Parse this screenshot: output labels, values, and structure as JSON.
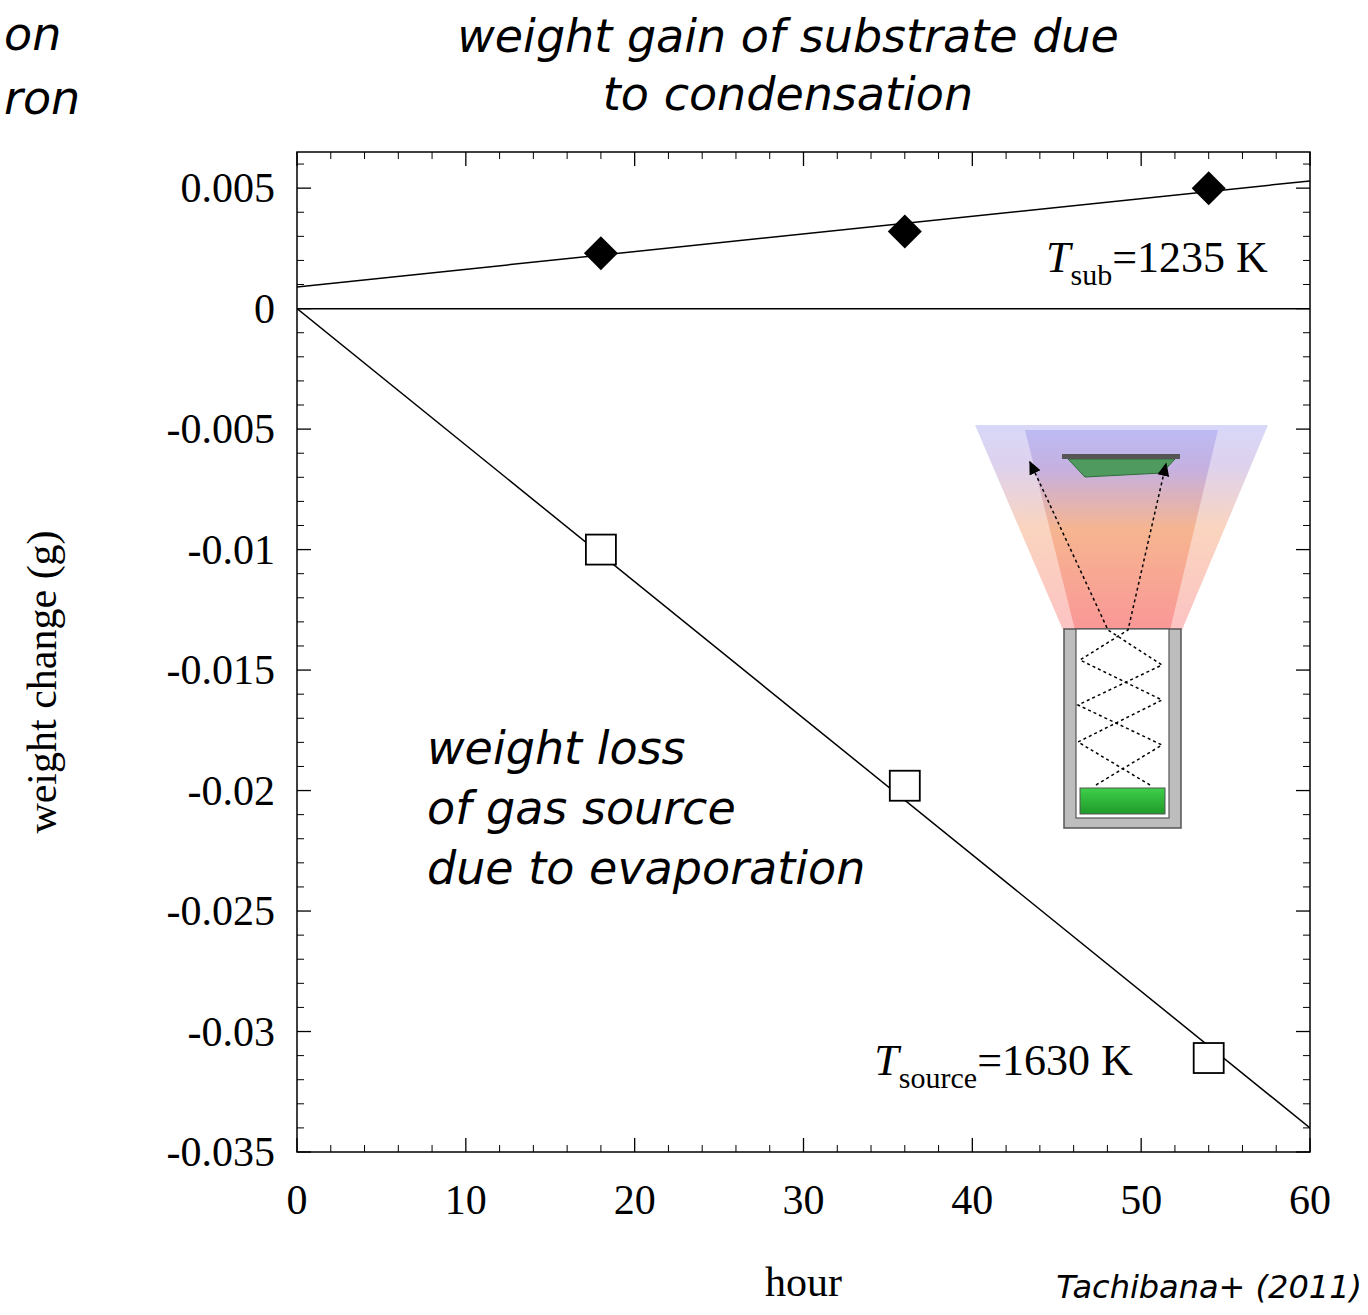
{
  "chart_data": {
    "type": "scatter",
    "title": "weight gain of substrate due to condensation",
    "slide_fragments": [
      "on",
      "ron"
    ],
    "xlabel": "hour",
    "ylabel": "weight change (g)",
    "source": "Tachibana+ (2011)",
    "xlim": [
      0,
      60
    ],
    "xticks": [
      0,
      10,
      20,
      30,
      40,
      50,
      60
    ],
    "ylim": [
      -0.035,
      0.0065
    ],
    "yticks": [
      -0.035,
      -0.03,
      -0.025,
      -0.02,
      -0.015,
      -0.01,
      -0.005,
      0,
      0.005
    ],
    "grid": false,
    "series": [
      {
        "type": "line",
        "line_style": "solid",
        "color": "#000000",
        "x": [
          0,
          60
        ],
        "values": [
          0,
          0
        ]
      },
      {
        "type": "line",
        "line_style": "solid",
        "color": "#000000",
        "x": [
          0,
          60
        ],
        "values": [
          0.0009,
          0.0053
        ]
      },
      {
        "type": "scatter",
        "marker": "diamond",
        "color": "#000000",
        "x": [
          18,
          36,
          54
        ],
        "values": [
          0.0023,
          0.0032,
          0.005
        ]
      },
      {
        "type": "line",
        "line_style": "solid",
        "color": "#000000",
        "x": [
          0,
          60
        ],
        "values": [
          0,
          -0.034
        ]
      },
      {
        "type": "scatter",
        "marker": "open-square",
        "color": "#000000",
        "x": [
          18,
          36,
          54
        ],
        "values": [
          -0.01,
          -0.0198,
          -0.0311
        ]
      }
    ],
    "annotations": [
      {
        "text": [
          "weight loss",
          "of gas source",
          "due to evaporation"
        ],
        "x": 7.7,
        "y": -0.0189
      },
      {
        "text": "T",
        "subscript": "sub",
        "suffix": "=1235 K",
        "x": 57.5,
        "y": 0.00154
      },
      {
        "text": "T",
        "subscript": "source",
        "suffix": "=1630 K",
        "x": 49.5,
        "y": -0.0318
      }
    ]
  }
}
